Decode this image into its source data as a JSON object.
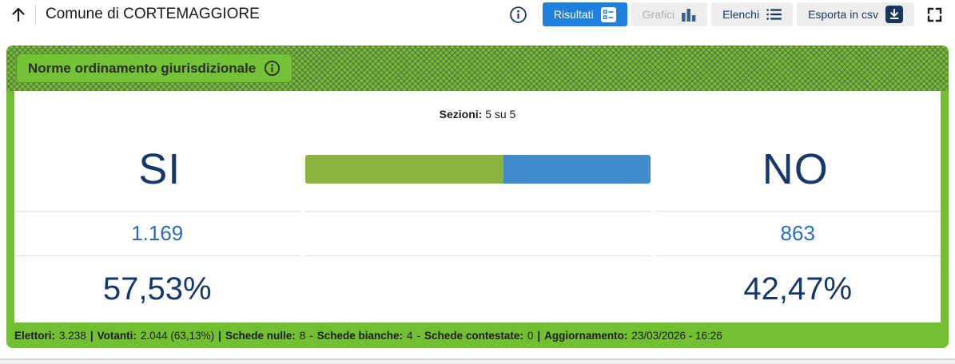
{
  "header": {
    "title": "Comune di CORTEMAGGIORE",
    "buttons": {
      "risultati": "Risultati",
      "grafici": "Grafici",
      "elenchi": "Elenchi",
      "esporta": "Esporta in csv"
    }
  },
  "referendum": {
    "question_title": "Norme ordinamento giurisdizionale",
    "sezioni_label": "Sezioni:",
    "sezioni_value": "5 su 5",
    "si": {
      "label": "SI",
      "votes": "1.169",
      "percent": "57,53%",
      "percent_num": 57.53
    },
    "no": {
      "label": "NO",
      "votes": "863",
      "percent": "42,47%",
      "percent_num": 42.47
    }
  },
  "footer": {
    "elettori_label": "Elettori:",
    "elettori_value": "3.238",
    "sep_a": "|",
    "votanti_label": "Votanti:",
    "votanti_value": "2.044 (63,13%)",
    "sep_b": "|",
    "nulle_label": "Schede nulle:",
    "nulle_value": "8",
    "dash_a": "-",
    "bianche_label": "Schede bianche:",
    "bianche_value": "4",
    "dash_b": "-",
    "contestate_label": "Schede contestate:",
    "contestate_value": "0",
    "sep_c": "|",
    "agg_label": "Aggiornamento:",
    "agg_value": "23/03/2026 - 16:26"
  },
  "colors": {
    "card_green": "#72c032",
    "bar_green": "#8ab33f",
    "bar_blue": "#428bca",
    "navy": "#14386a",
    "active_tab_blue": "#1f7fdc",
    "value_blue": "#2a6ebb"
  }
}
